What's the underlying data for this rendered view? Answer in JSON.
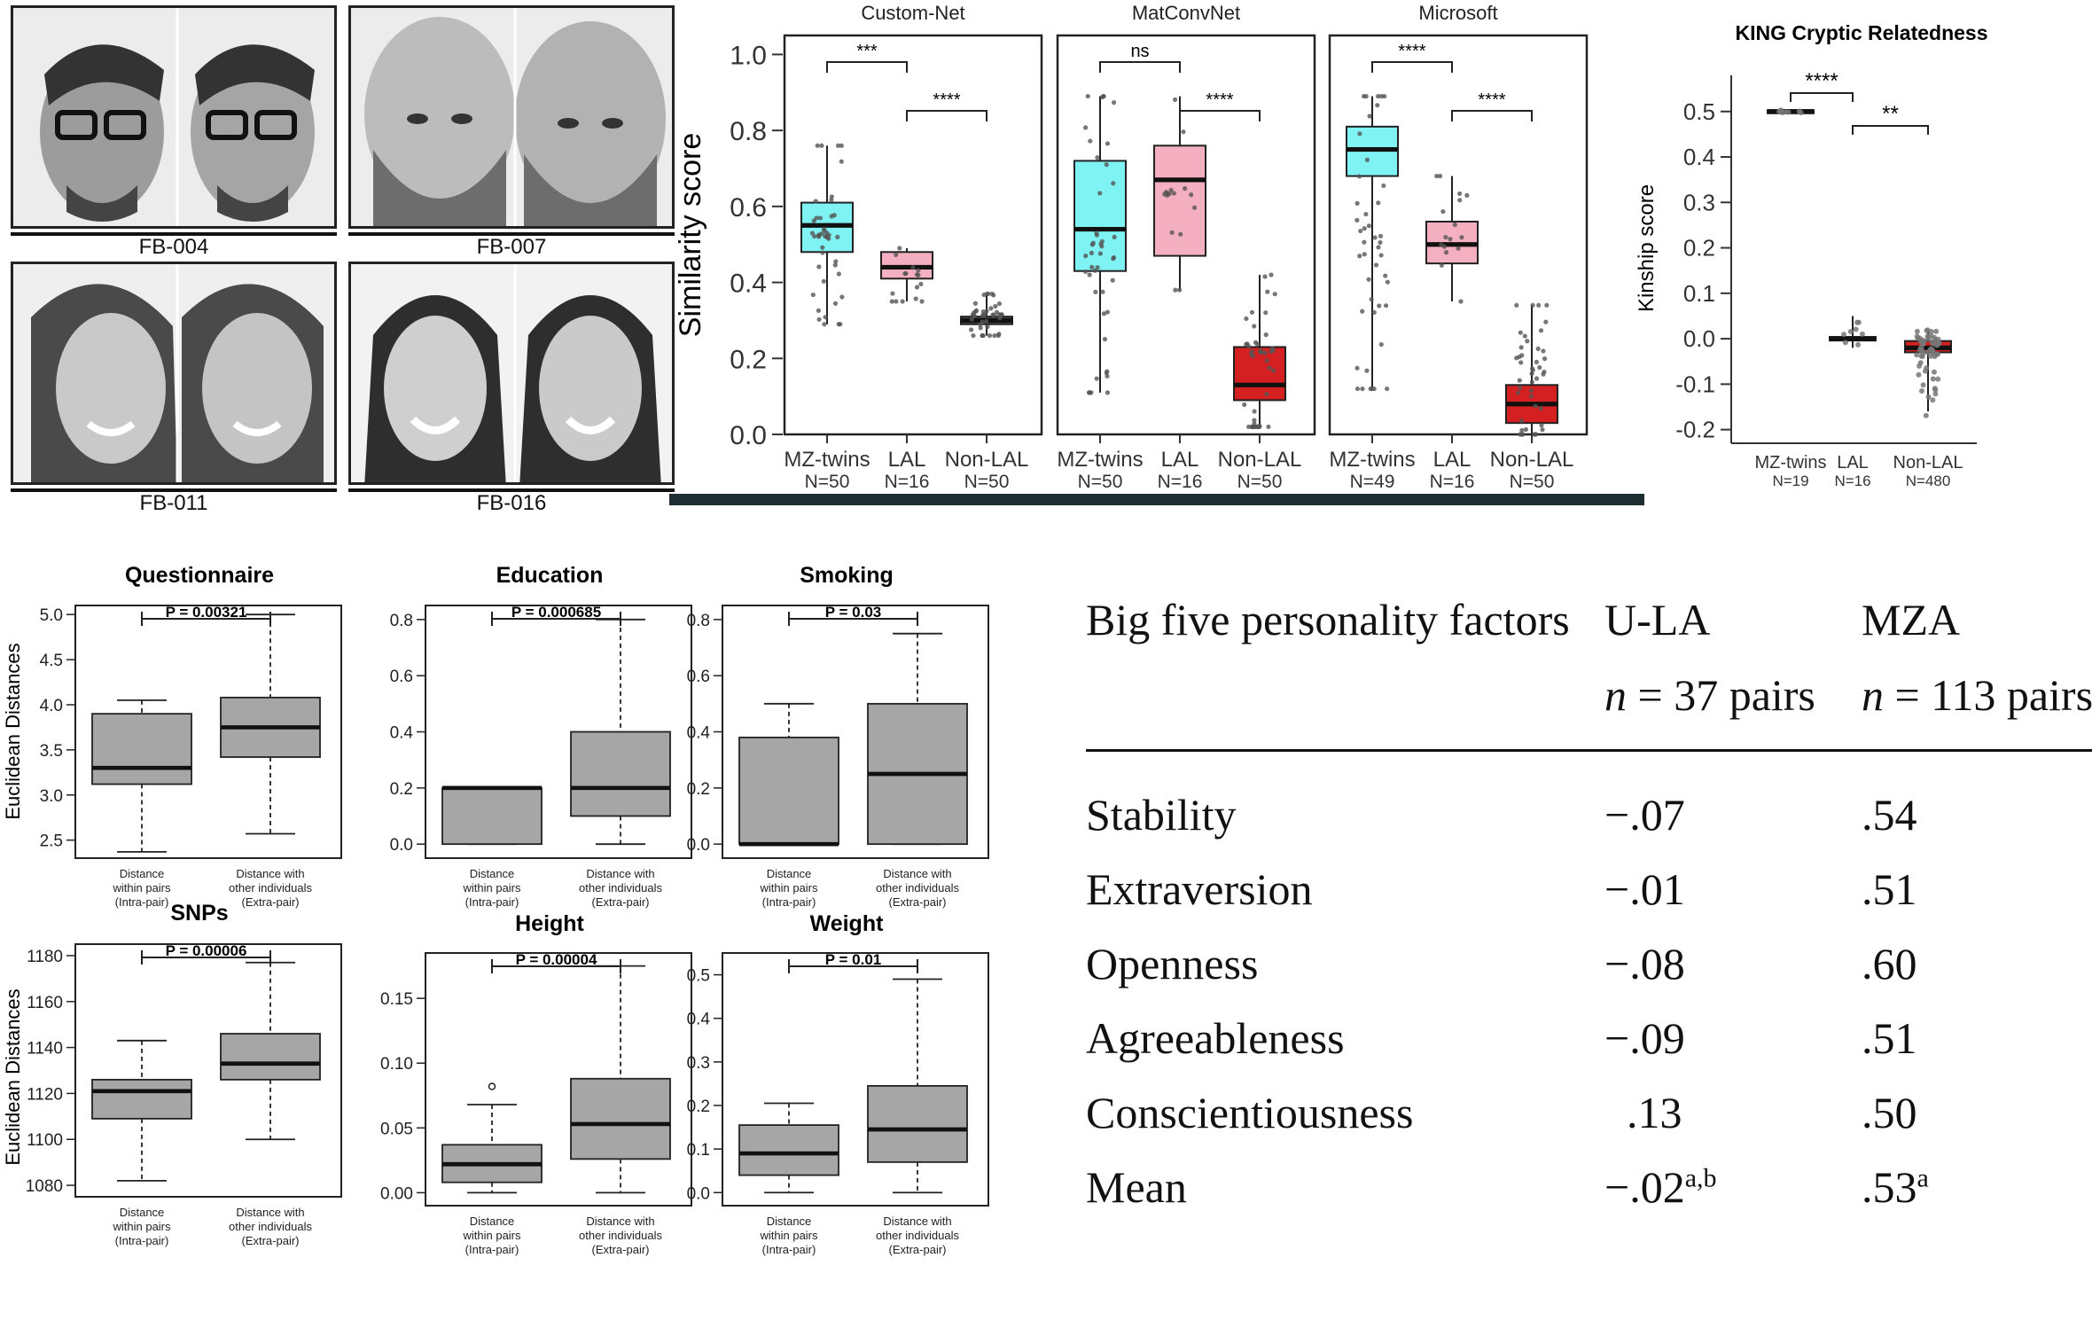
{
  "faces": [
    {
      "label": "FB-004"
    },
    {
      "label": "FB-007"
    },
    {
      "label": "FB-011"
    },
    {
      "label": "FB-016"
    }
  ],
  "similarity": {
    "ylabel": "Similarity score",
    "ylim": [
      0,
      1.05
    ],
    "yticks": [
      "0.0",
      "0.2",
      "0.4",
      "0.6",
      "0.8",
      "1.0"
    ],
    "panels": [
      {
        "title": "Custom-Net",
        "categories": [
          {
            "label": "MZ-twins",
            "n": "N=50"
          },
          {
            "label": "LAL",
            "n": "N=16"
          },
          {
            "label": "Non-LAL",
            "n": "N=50"
          }
        ],
        "sig": [
          "***",
          "****"
        ]
      },
      {
        "title": "MatConvNet",
        "categories": [
          {
            "label": "MZ-twins",
            "n": "N=50"
          },
          {
            "label": "LAL",
            "n": "N=16"
          },
          {
            "label": "Non-LAL",
            "n": "N=50"
          }
        ],
        "sig": [
          "ns",
          "****"
        ]
      },
      {
        "title": "Microsoft",
        "categories": [
          {
            "label": "MZ-twins",
            "n": "N=49"
          },
          {
            "label": "LAL",
            "n": "N=16"
          },
          {
            "label": "Non-LAL",
            "n": "N=50"
          }
        ],
        "sig": [
          "****",
          "****"
        ]
      }
    ]
  },
  "kinship": {
    "title": "KING Cryptic Relatedness",
    "ylabel": "Kinship score",
    "yticks": [
      "-0.2",
      "-0.1",
      "0.0",
      "0.1",
      "0.2",
      "0.3",
      "0.4",
      "0.5"
    ],
    "categories": [
      {
        "label": "MZ-twins",
        "n": "N=19"
      },
      {
        "label": "LAL",
        "n": "N=16"
      },
      {
        "label": "Non-LAL",
        "n": "N=480"
      }
    ],
    "sig": [
      "****",
      "**"
    ]
  },
  "distance_ylabel": "Euclidean Distances",
  "distance_xcats": [
    [
      "Distance",
      "within pairs",
      "(Intra-pair)"
    ],
    [
      "Distance with",
      "other individuals",
      "(Extra-pair)"
    ]
  ],
  "distance_panels": [
    {
      "title": "Questionnaire",
      "p": "P = 0.00321",
      "yticks": [
        "2.5",
        "3.0",
        "3.5",
        "4.0",
        "4.5",
        "5.0"
      ]
    },
    {
      "title": "Education",
      "p": "P = 0.000685",
      "yticks": [
        "0.0",
        "0.2",
        "0.4",
        "0.6",
        "0.8"
      ]
    },
    {
      "title": "Smoking",
      "p": "P = 0.03",
      "yticks": [
        "0.0",
        "0.2",
        "0.4",
        "0.6",
        "0.8"
      ]
    },
    {
      "title": "SNPs",
      "p": "P = 0.00006",
      "yticks": [
        "1080",
        "1100",
        "1120",
        "1140",
        "1160",
        "1180"
      ]
    },
    {
      "title": "Height",
      "p": "P = 0.00004",
      "yticks": [
        "0.00",
        "0.05",
        "0.10",
        "0.15"
      ]
    },
    {
      "title": "Weight",
      "p": "P = 0.01",
      "yticks": [
        "0.0",
        "0.1",
        "0.2",
        "0.3",
        "0.4",
        "0.5"
      ]
    }
  ],
  "table": {
    "header": {
      "col0": "Big five personality factors",
      "col1": "U-LA",
      "col2": "MZA",
      "n_italic": "n",
      "col1_n": " = 37 pairs",
      "col2_n": " = 113 pairs"
    },
    "rows": [
      {
        "factor": "Stability",
        "ula": "−.07",
        "mza": ".54"
      },
      {
        "factor": "Extraversion",
        "ula": "−.01",
        "mza": ".51"
      },
      {
        "factor": "Openness",
        "ula": "−.08",
        "mza": ".60"
      },
      {
        "factor": "Agreeableness",
        "ula": "−.09",
        "mza": ".51"
      },
      {
        "factor": "Conscientiousness",
        "ula": ".13",
        "mza": ".50"
      },
      {
        "factor": "Mean",
        "ula": "−.02",
        "ula_sup": "a,b",
        "mza": ".53",
        "mza_sup": "a"
      }
    ]
  },
  "chart_data": [
    {
      "type": "box",
      "title": "Custom-Net",
      "ylabel": "Similarity score",
      "ylim": [
        0,
        1.0
      ],
      "categories": [
        "MZ-twins",
        "LAL",
        "Non-LAL"
      ],
      "series": [
        {
          "values": [
            {
              "q1": 0.48,
              "median": 0.55,
              "q3": 0.61,
              "min": 0.29,
              "max": 0.76,
              "color": "#7ff3f3"
            },
            {
              "q1": 0.41,
              "median": 0.44,
              "q3": 0.48,
              "min": 0.35,
              "max": 0.49,
              "color": "#f4b0c0"
            },
            {
              "q1": 0.29,
              "median": 0.3,
              "q3": 0.31,
              "min": 0.26,
              "max": 0.37,
              "color": "#555555"
            }
          ]
        }
      ]
    },
    {
      "type": "box",
      "title": "MatConvNet",
      "ylabel": "Similarity score",
      "ylim": [
        0,
        1.0
      ],
      "categories": [
        "MZ-twins",
        "LAL",
        "Non-LAL"
      ],
      "series": [
        {
          "values": [
            {
              "q1": 0.43,
              "median": 0.54,
              "q3": 0.72,
              "min": 0.11,
              "max": 0.89,
              "color": "#7ff3f3"
            },
            {
              "q1": 0.47,
              "median": 0.67,
              "q3": 0.76,
              "min": 0.38,
              "max": 0.89,
              "color": "#f4b0c0"
            },
            {
              "q1": 0.09,
              "median": 0.13,
              "q3": 0.23,
              "min": 0.02,
              "max": 0.42,
              "color": "#d42020"
            }
          ]
        }
      ]
    },
    {
      "type": "box",
      "title": "Microsoft",
      "ylabel": "Similarity score",
      "ylim": [
        0,
        1.0
      ],
      "categories": [
        "MZ-twins",
        "LAL",
        "Non-LAL"
      ],
      "series": [
        {
          "values": [
            {
              "q1": 0.68,
              "median": 0.75,
              "q3": 0.81,
              "min": 0.12,
              "max": 0.89,
              "color": "#7ff3f3"
            },
            {
              "q1": 0.45,
              "median": 0.5,
              "q3": 0.56,
              "min": 0.35,
              "max": 0.68,
              "color": "#f4b0c0"
            },
            {
              "q1": 0.03,
              "median": 0.08,
              "q3": 0.13,
              "min": 0.0,
              "max": 0.34,
              "color": "#d42020"
            }
          ]
        }
      ]
    },
    {
      "type": "box",
      "title": "KING Cryptic Relatedness",
      "ylabel": "Kinship score",
      "ylim": [
        -0.2,
        0.5
      ],
      "categories": [
        "MZ-twins",
        "LAL",
        "Non-LAL"
      ],
      "series": [
        {
          "values": [
            {
              "q1": 0.496,
              "median": 0.5,
              "q3": 0.503,
              "min": 0.496,
              "max": 0.503,
              "color": "#7ff3f3"
            },
            {
              "q1": -0.004,
              "median": 0.0,
              "q3": 0.004,
              "min": -0.02,
              "max": 0.05,
              "color": "#f4b0c0"
            },
            {
              "q1": -0.03,
              "median": -0.02,
              "q3": -0.005,
              "min": -0.16,
              "max": 0.02,
              "color": "#d42020"
            }
          ]
        }
      ]
    },
    {
      "type": "box",
      "title": "Questionnaire",
      "ylabel": "Euclidean Distances",
      "ylim": [
        2.3,
        5.1
      ],
      "categories": [
        "Distance within pairs (Intra-pair)",
        "Distance with other individuals (Extra-pair)"
      ],
      "series": [
        {
          "values": [
            {
              "min": 2.37,
              "q1": 3.12,
              "median": 3.3,
              "q3": 3.9,
              "max": 4.05
            },
            {
              "min": 2.57,
              "q1": 3.42,
              "median": 3.75,
              "q3": 4.08,
              "max": 5.0
            }
          ]
        }
      ]
    },
    {
      "type": "box",
      "title": "Education",
      "ylabel": "",
      "ylim": [
        -0.05,
        0.85
      ],
      "categories": [
        "Distance within pairs (Intra-pair)",
        "Distance with other individuals (Extra-pair)"
      ],
      "series": [
        {
          "values": [
            {
              "min": 0.0,
              "q1": 0.0,
              "median": 0.2,
              "q3": 0.2,
              "max": 0.2
            },
            {
              "min": 0.0,
              "q1": 0.1,
              "median": 0.2,
              "q3": 0.4,
              "max": 0.8
            }
          ]
        }
      ]
    },
    {
      "type": "box",
      "title": "Smoking",
      "ylabel": "",
      "ylim": [
        -0.05,
        0.85
      ],
      "categories": [
        "Distance within pairs (Intra-pair)",
        "Distance with other individuals (Extra-pair)"
      ],
      "series": [
        {
          "values": [
            {
              "min": 0.0,
              "q1": 0.0,
              "median": 0.0,
              "q3": 0.38,
              "max": 0.5
            },
            {
              "min": 0.0,
              "q1": 0.0,
              "median": 0.25,
              "q3": 0.5,
              "max": 0.75
            }
          ]
        }
      ]
    },
    {
      "type": "box",
      "title": "SNPs",
      "ylabel": "Euclidean Distances",
      "ylim": [
        1075,
        1185
      ],
      "categories": [
        "Distance within pairs (Intra-pair)",
        "Distance with other individuals (Extra-pair)"
      ],
      "series": [
        {
          "values": [
            {
              "min": 1082,
              "q1": 1109,
              "median": 1121,
              "q3": 1126,
              "max": 1143
            },
            {
              "min": 1100,
              "q1": 1126,
              "median": 1133,
              "q3": 1146,
              "max": 1177
            }
          ]
        }
      ]
    },
    {
      "type": "box",
      "title": "Height",
      "ylabel": "",
      "ylim": [
        -0.01,
        0.185
      ],
      "categories": [
        "Distance within pairs (Intra-pair)",
        "Distance with other individuals (Extra-pair)"
      ],
      "series": [
        {
          "values": [
            {
              "min": 0.0,
              "q1": 0.008,
              "median": 0.022,
              "q3": 0.037,
              "max": 0.068,
              "outliers": [
                0.082
              ]
            },
            {
              "min": 0.0,
              "q1": 0.026,
              "median": 0.053,
              "q3": 0.088,
              "max": 0.175
            }
          ]
        }
      ]
    },
    {
      "type": "box",
      "title": "Weight",
      "ylabel": "",
      "ylim": [
        -0.03,
        0.55
      ],
      "categories": [
        "Distance within pairs (Intra-pair)",
        "Distance with other individuals (Extra-pair)"
      ],
      "series": [
        {
          "values": [
            {
              "min": 0.0,
              "q1": 0.04,
              "median": 0.09,
              "q3": 0.155,
              "max": 0.205
            },
            {
              "min": 0.0,
              "q1": 0.07,
              "median": 0.145,
              "q3": 0.245,
              "max": 0.49
            }
          ]
        }
      ]
    }
  ]
}
